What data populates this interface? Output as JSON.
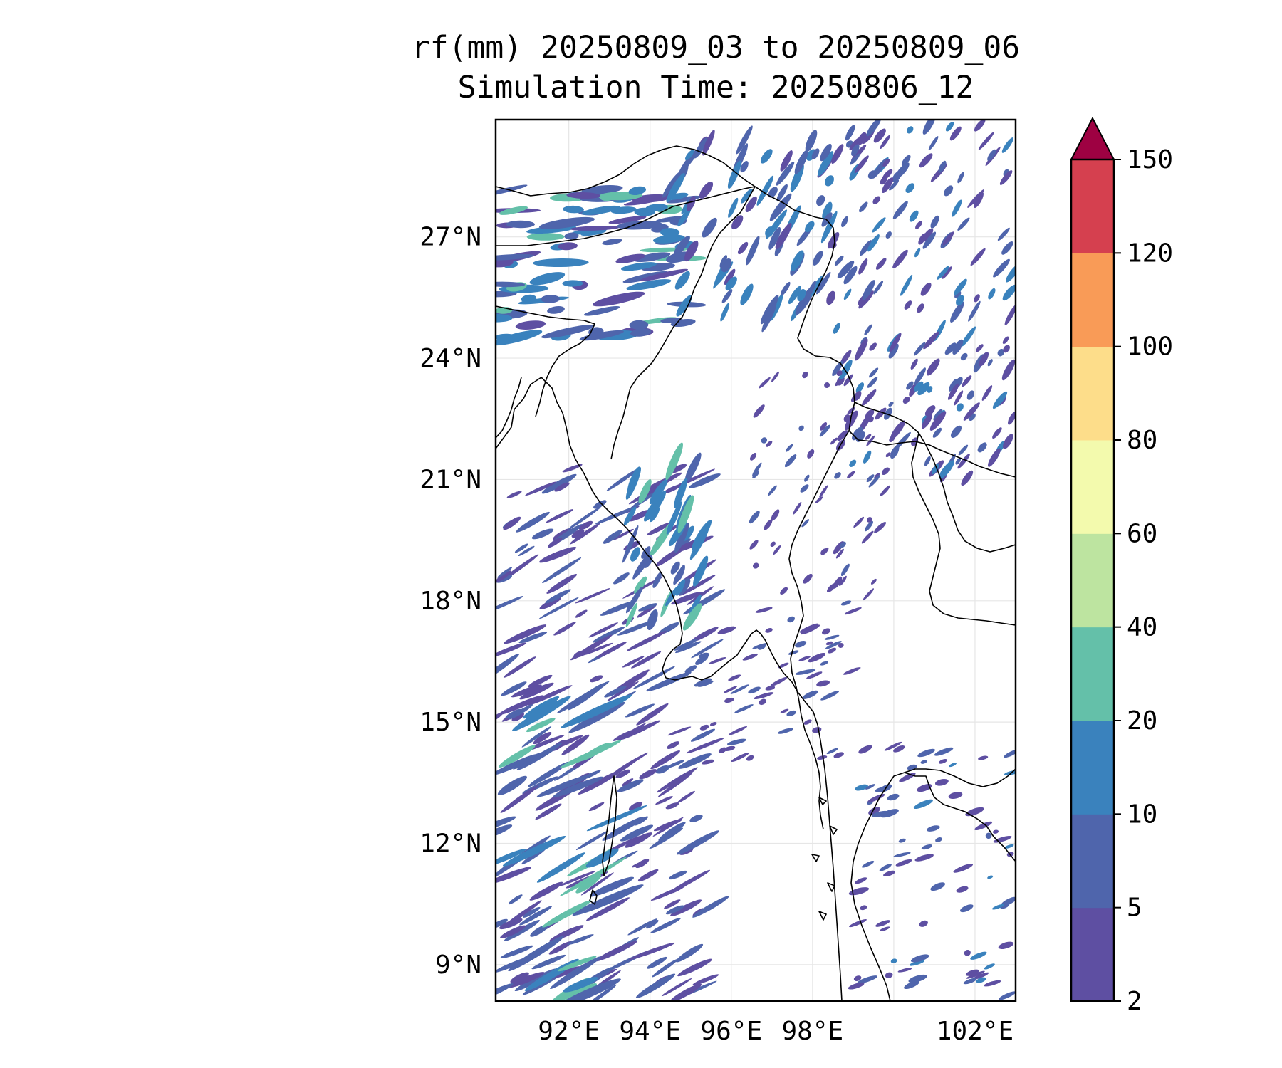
{
  "title": {
    "line1": "rf(mm) 20250809_03 to 20250809_06",
    "line2": "Simulation Time: 20250806_12"
  },
  "map": {
    "extent": {
      "lon_min": 90.2,
      "lon_max": 103.0,
      "lat_min": 8.1,
      "lat_max": 29.9
    },
    "lat_ticks": [
      {
        "value": 27,
        "label": "27°N"
      },
      {
        "value": 24,
        "label": "24°N"
      },
      {
        "value": 21,
        "label": "21°N"
      },
      {
        "value": 18,
        "label": "18°N"
      },
      {
        "value": 15,
        "label": "15°N"
      },
      {
        "value": 12,
        "label": "12°N"
      },
      {
        "value": 9,
        "label": "9°N"
      }
    ],
    "lon_ticks": [
      {
        "value": 92,
        "label": "92°E"
      },
      {
        "value": 94,
        "label": "94°E"
      },
      {
        "value": 96,
        "label": "96°E"
      },
      {
        "value": 98,
        "label": "98°E"
      },
      {
        "value": 102,
        "label": "102°E"
      }
    ],
    "gridlines": true
  },
  "colorbar": {
    "levels": [
      "2",
      "5",
      "10",
      "20",
      "40",
      "60",
      "80",
      "100",
      "120",
      "150"
    ],
    "colors": [
      "#5e4fa2",
      "#4f65ac",
      "#3a82bd",
      "#64c0a9",
      "#bde4a0",
      "#f3faad",
      "#fddd8a",
      "#f99b57",
      "#d5404f"
    ],
    "extend_color": "#9e0142",
    "extend": "max"
  }
}
